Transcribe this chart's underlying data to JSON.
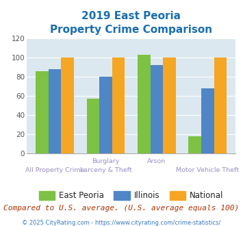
{
  "title_line1": "2019 East Peoria",
  "title_line2": "Property Crime Comparison",
  "east_peoria": [
    86,
    57,
    103,
    18
  ],
  "illinois": [
    88,
    80,
    92,
    68
  ],
  "national": [
    100,
    100,
    100,
    100
  ],
  "bar_colors": {
    "east_peoria": "#7dc242",
    "illinois": "#4f86c6",
    "national": "#f5a623"
  },
  "ylim": [
    0,
    120
  ],
  "yticks": [
    0,
    20,
    40,
    60,
    80,
    100,
    120
  ],
  "legend_labels": [
    "East Peoria",
    "Illinois",
    "National"
  ],
  "footnote1": "Compared to U.S. average. (U.S. average equals 100)",
  "footnote2": "© 2025 CityRating.com - https://www.cityrating.com/crime-statistics/",
  "title_color": "#1a6faf",
  "footnote1_color": "#b03000",
  "footnote2_color": "#3a7abf",
  "label_color": "#9b8ec4",
  "bg_color": "#dce8ef",
  "group_positions": [
    0,
    1,
    2,
    3
  ]
}
